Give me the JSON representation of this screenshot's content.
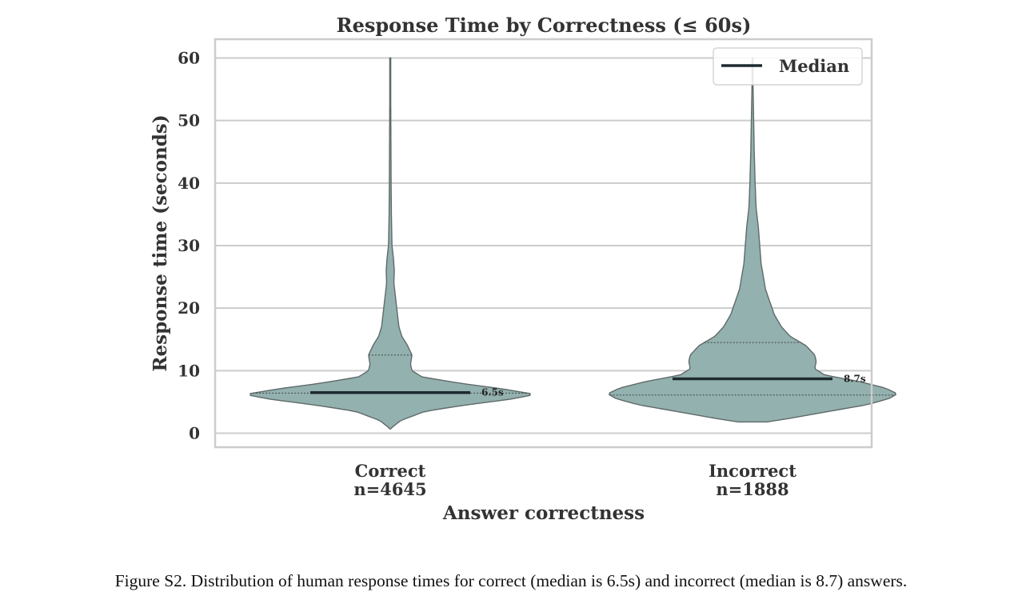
{
  "chart_data": {
    "type": "violin",
    "title": "Response Time by Correctness (≤ 60s)",
    "xlabel": "Answer correctness",
    "ylabel": "Response time (seconds)",
    "ylim": [
      -2,
      63
    ],
    "yticks": [
      0,
      10,
      20,
      30,
      40,
      50,
      60
    ],
    "grid": true,
    "legend": {
      "label": "Median",
      "placement": "top-right"
    },
    "categories": [
      {
        "label": "Correct",
        "count_label": "n=4645",
        "median": 6.5,
        "median_label": "6.5s",
        "q1": 6.4,
        "q3": 12.5,
        "min": 0.7,
        "max": 60,
        "density_profile": [
          [
            0.7,
            0.0
          ],
          [
            2.0,
            0.07
          ],
          [
            3.5,
            0.24
          ],
          [
            4.5,
            0.52
          ],
          [
            5.5,
            0.85
          ],
          [
            6.2,
            1.0
          ],
          [
            7.0,
            0.8
          ],
          [
            8.0,
            0.48
          ],
          [
            9.0,
            0.22
          ],
          [
            10.0,
            0.15
          ],
          [
            11.0,
            0.14
          ],
          [
            12.5,
            0.15
          ],
          [
            14.0,
            0.12
          ],
          [
            15.5,
            0.08
          ],
          [
            17.0,
            0.06
          ],
          [
            19.0,
            0.05
          ],
          [
            21.0,
            0.04
          ],
          [
            24.0,
            0.025
          ],
          [
            26.0,
            0.028
          ],
          [
            28.0,
            0.022
          ],
          [
            30.0,
            0.012
          ],
          [
            35.0,
            0.008
          ],
          [
            40.0,
            0.006
          ],
          [
            45.0,
            0.005
          ],
          [
            50.0,
            0.004
          ],
          [
            55.0,
            0.003
          ],
          [
            60.0,
            0.0
          ]
        ],
        "color": "#93b1ae"
      },
      {
        "label": "Incorrect",
        "count_label": "n=1888",
        "median": 8.7,
        "median_label": "8.7s",
        "q1": 6.1,
        "q3": 14.5,
        "min": 1.8,
        "max": 60,
        "density_profile": [
          [
            1.8,
            0.1
          ],
          [
            2.5,
            0.29
          ],
          [
            3.5,
            0.53
          ],
          [
            4.5,
            0.78
          ],
          [
            5.5,
            0.94
          ],
          [
            6.3,
            1.0
          ],
          [
            7.2,
            0.92
          ],
          [
            8.2,
            0.75
          ],
          [
            9.3,
            0.5
          ],
          [
            10.3,
            0.43
          ],
          [
            11.5,
            0.44
          ],
          [
            12.5,
            0.43
          ],
          [
            14.0,
            0.37
          ],
          [
            15.5,
            0.26
          ],
          [
            17.0,
            0.2
          ],
          [
            19.0,
            0.15
          ],
          [
            21.0,
            0.12
          ],
          [
            23.0,
            0.09
          ],
          [
            25.0,
            0.075
          ],
          [
            27.0,
            0.06
          ],
          [
            30.0,
            0.05
          ],
          [
            33.0,
            0.04
          ],
          [
            36.0,
            0.025
          ],
          [
            40.0,
            0.018
          ],
          [
            45.0,
            0.012
          ],
          [
            50.0,
            0.008
          ],
          [
            55.0,
            0.004
          ],
          [
            60.0,
            0.0
          ]
        ],
        "color": "#93b1ae"
      }
    ]
  },
  "caption": "Figure S2.  Distribution of human response times for correct (median is 6.5s) and incorrect (median is 8.7) answers."
}
